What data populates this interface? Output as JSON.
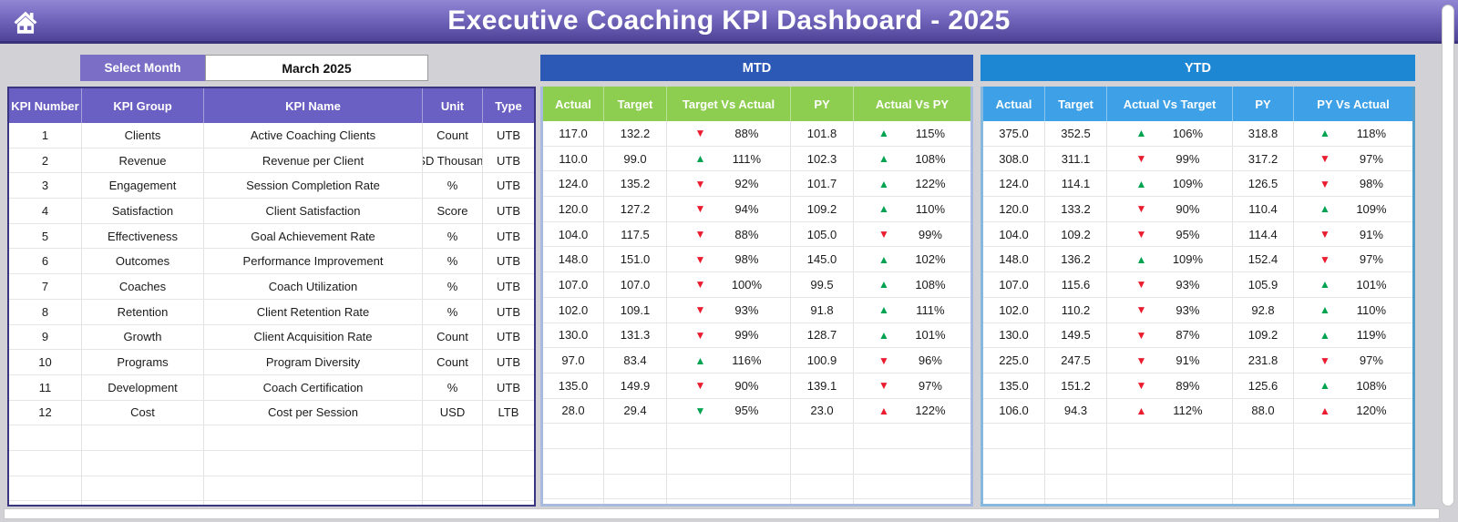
{
  "header": {
    "title": "Executive Coaching KPI Dashboard - 2025"
  },
  "controls": {
    "select_month_label": "Select Month",
    "selected_month": "March 2025"
  },
  "sections": {
    "mtd_label": "MTD",
    "ytd_label": "YTD"
  },
  "colors": {
    "banner_purple": "#5a4ea2",
    "table_header_purple": "#6a5fc2",
    "mtd_band_blue": "#2c59b5",
    "mtd_header_green": "#8dce50",
    "ytd_band_blue": "#1e87d3",
    "ytd_header_blue": "#3ea0e6",
    "positive_green": "#00a350",
    "negative_red": "#ea1c2e"
  },
  "grid": {
    "empty_row_count": 4
  },
  "kpi_table": {
    "headers": [
      "KPI Number",
      "KPI Group",
      "KPI Name",
      "Unit",
      "Type"
    ],
    "rows": [
      {
        "number": "1",
        "group": "Clients",
        "name": "Active Coaching Clients",
        "unit": "Count",
        "type": "UTB"
      },
      {
        "number": "2",
        "group": "Revenue",
        "name": "Revenue per Client",
        "unit": "USD Thousands",
        "type": "UTB"
      },
      {
        "number": "3",
        "group": "Engagement",
        "name": "Session Completion Rate",
        "unit": "%",
        "type": "UTB"
      },
      {
        "number": "4",
        "group": "Satisfaction",
        "name": "Client Satisfaction",
        "unit": "Score",
        "type": "UTB"
      },
      {
        "number": "5",
        "group": "Effectiveness",
        "name": "Goal Achievement Rate",
        "unit": "%",
        "type": "UTB"
      },
      {
        "number": "6",
        "group": "Outcomes",
        "name": "Performance Improvement",
        "unit": "%",
        "type": "UTB"
      },
      {
        "number": "7",
        "group": "Coaches",
        "name": "Coach Utilization",
        "unit": "%",
        "type": "UTB"
      },
      {
        "number": "8",
        "group": "Retention",
        "name": "Client Retention Rate",
        "unit": "%",
        "type": "UTB"
      },
      {
        "number": "9",
        "group": "Growth",
        "name": "Client Acquisition Rate",
        "unit": "Count",
        "type": "UTB"
      },
      {
        "number": "10",
        "group": "Programs",
        "name": "Program Diversity",
        "unit": "Count",
        "type": "UTB"
      },
      {
        "number": "11",
        "group": "Development",
        "name": "Coach Certification",
        "unit": "%",
        "type": "UTB"
      },
      {
        "number": "12",
        "group": "Cost",
        "name": "Cost per Session",
        "unit": "USD",
        "type": "LTB"
      }
    ]
  },
  "mtd_table": {
    "headers": [
      "Actual",
      "Target",
      "Target Vs Actual",
      "PY",
      "Actual Vs PY"
    ],
    "rows": [
      {
        "actual": "117.0",
        "target": "132.2",
        "target_vs_actual": {
          "dir": "down",
          "color": "red",
          "value": "88%"
        },
        "py": "101.8",
        "actual_vs_py": {
          "dir": "up",
          "color": "green",
          "value": "115%"
        }
      },
      {
        "actual": "110.0",
        "target": "99.0",
        "target_vs_actual": {
          "dir": "up",
          "color": "green",
          "value": "111%"
        },
        "py": "102.3",
        "actual_vs_py": {
          "dir": "up",
          "color": "green",
          "value": "108%"
        }
      },
      {
        "actual": "124.0",
        "target": "135.2",
        "target_vs_actual": {
          "dir": "down",
          "color": "red",
          "value": "92%"
        },
        "py": "101.7",
        "actual_vs_py": {
          "dir": "up",
          "color": "green",
          "value": "122%"
        }
      },
      {
        "actual": "120.0",
        "target": "127.2",
        "target_vs_actual": {
          "dir": "down",
          "color": "red",
          "value": "94%"
        },
        "py": "109.2",
        "actual_vs_py": {
          "dir": "up",
          "color": "green",
          "value": "110%"
        }
      },
      {
        "actual": "104.0",
        "target": "117.5",
        "target_vs_actual": {
          "dir": "down",
          "color": "red",
          "value": "88%"
        },
        "py": "105.0",
        "actual_vs_py": {
          "dir": "down",
          "color": "red",
          "value": "99%"
        }
      },
      {
        "actual": "148.0",
        "target": "151.0",
        "target_vs_actual": {
          "dir": "down",
          "color": "red",
          "value": "98%"
        },
        "py": "145.0",
        "actual_vs_py": {
          "dir": "up",
          "color": "green",
          "value": "102%"
        }
      },
      {
        "actual": "107.0",
        "target": "107.0",
        "target_vs_actual": {
          "dir": "down",
          "color": "red",
          "value": "100%"
        },
        "py": "99.5",
        "actual_vs_py": {
          "dir": "up",
          "color": "green",
          "value": "108%"
        }
      },
      {
        "actual": "102.0",
        "target": "109.1",
        "target_vs_actual": {
          "dir": "down",
          "color": "red",
          "value": "93%"
        },
        "py": "91.8",
        "actual_vs_py": {
          "dir": "up",
          "color": "green",
          "value": "111%"
        }
      },
      {
        "actual": "130.0",
        "target": "131.3",
        "target_vs_actual": {
          "dir": "down",
          "color": "red",
          "value": "99%"
        },
        "py": "128.7",
        "actual_vs_py": {
          "dir": "up",
          "color": "green",
          "value": "101%"
        }
      },
      {
        "actual": "97.0",
        "target": "83.4",
        "target_vs_actual": {
          "dir": "up",
          "color": "green",
          "value": "116%"
        },
        "py": "100.9",
        "actual_vs_py": {
          "dir": "down",
          "color": "red",
          "value": "96%"
        }
      },
      {
        "actual": "135.0",
        "target": "149.9",
        "target_vs_actual": {
          "dir": "down",
          "color": "red",
          "value": "90%"
        },
        "py": "139.1",
        "actual_vs_py": {
          "dir": "down",
          "color": "red",
          "value": "97%"
        }
      },
      {
        "actual": "28.0",
        "target": "29.4",
        "target_vs_actual": {
          "dir": "down",
          "color": "green",
          "value": "95%"
        },
        "py": "23.0",
        "actual_vs_py": {
          "dir": "up",
          "color": "red",
          "value": "122%"
        }
      }
    ]
  },
  "ytd_table": {
    "headers": [
      "Actual",
      "Target",
      "Actual Vs Target",
      "PY",
      "PY Vs Actual"
    ],
    "rows": [
      {
        "actual": "375.0",
        "target": "352.5",
        "actual_vs_target": {
          "dir": "up",
          "color": "green",
          "value": "106%"
        },
        "py": "318.8",
        "py_vs_actual": {
          "dir": "up",
          "color": "green",
          "value": "118%"
        }
      },
      {
        "actual": "308.0",
        "target": "311.1",
        "actual_vs_target": {
          "dir": "down",
          "color": "red",
          "value": "99%"
        },
        "py": "317.2",
        "py_vs_actual": {
          "dir": "down",
          "color": "red",
          "value": "97%"
        }
      },
      {
        "actual": "124.0",
        "target": "114.1",
        "actual_vs_target": {
          "dir": "up",
          "color": "green",
          "value": "109%"
        },
        "py": "126.5",
        "py_vs_actual": {
          "dir": "down",
          "color": "red",
          "value": "98%"
        }
      },
      {
        "actual": "120.0",
        "target": "133.2",
        "actual_vs_target": {
          "dir": "down",
          "color": "red",
          "value": "90%"
        },
        "py": "110.4",
        "py_vs_actual": {
          "dir": "up",
          "color": "green",
          "value": "109%"
        }
      },
      {
        "actual": "104.0",
        "target": "109.2",
        "actual_vs_target": {
          "dir": "down",
          "color": "red",
          "value": "95%"
        },
        "py": "114.4",
        "py_vs_actual": {
          "dir": "down",
          "color": "red",
          "value": "91%"
        }
      },
      {
        "actual": "148.0",
        "target": "136.2",
        "actual_vs_target": {
          "dir": "up",
          "color": "green",
          "value": "109%"
        },
        "py": "152.4",
        "py_vs_actual": {
          "dir": "down",
          "color": "red",
          "value": "97%"
        }
      },
      {
        "actual": "107.0",
        "target": "115.6",
        "actual_vs_target": {
          "dir": "down",
          "color": "red",
          "value": "93%"
        },
        "py": "105.9",
        "py_vs_actual": {
          "dir": "up",
          "color": "green",
          "value": "101%"
        }
      },
      {
        "actual": "102.0",
        "target": "110.2",
        "actual_vs_target": {
          "dir": "down",
          "color": "red",
          "value": "93%"
        },
        "py": "92.8",
        "py_vs_actual": {
          "dir": "up",
          "color": "green",
          "value": "110%"
        }
      },
      {
        "actual": "130.0",
        "target": "149.5",
        "actual_vs_target": {
          "dir": "down",
          "color": "red",
          "value": "87%"
        },
        "py": "109.2",
        "py_vs_actual": {
          "dir": "up",
          "color": "green",
          "value": "119%"
        }
      },
      {
        "actual": "225.0",
        "target": "247.5",
        "actual_vs_target": {
          "dir": "down",
          "color": "red",
          "value": "91%"
        },
        "py": "231.8",
        "py_vs_actual": {
          "dir": "down",
          "color": "red",
          "value": "97%"
        }
      },
      {
        "actual": "135.0",
        "target": "151.2",
        "actual_vs_target": {
          "dir": "down",
          "color": "red",
          "value": "89%"
        },
        "py": "125.6",
        "py_vs_actual": {
          "dir": "up",
          "color": "green",
          "value": "108%"
        }
      },
      {
        "actual": "106.0",
        "target": "94.3",
        "actual_vs_target": {
          "dir": "up",
          "color": "red",
          "value": "112%"
        },
        "py": "88.0",
        "py_vs_actual": {
          "dir": "up",
          "color": "red",
          "value": "120%"
        }
      }
    ]
  }
}
